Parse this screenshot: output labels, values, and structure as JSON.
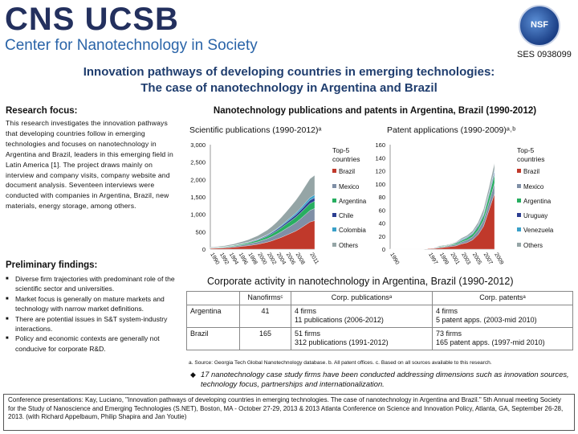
{
  "header": {
    "logo_main": "CNS UCSB",
    "logo_sub": "Center for Nanotechnology in Society",
    "nsf_label": "NSF",
    "ses_number": "SES 0938099"
  },
  "title": {
    "line1": "Innovation pathways of developing countries in emerging technologies:",
    "line2": "The case of nanotechnology in Argentina and Brazil"
  },
  "research_focus": {
    "heading": "Research focus:",
    "text": "This research investigates the innovation pathways that developing countries follow in emerging technologies and focuses on nanotechnology in Argentina and Brazil, leaders in this emerging field in Latin America [1]. The project draws mainly on interview and company visits, company website and document analysis. Seventeen interviews were conducted with companies in Argentina, Brazil, new materials, energy storage, among others."
  },
  "preliminary_findings": {
    "heading": "Preliminary findings:",
    "items": [
      "Diverse firm trajectories with predominant role of the scientific sector and universities.",
      "Market focus is generally on mature markets and technology with narrow market definitions.",
      "There are potential issues in S&T system-industry interactions.",
      "Policy and economic contexts are generally not conducive for corporate R&D."
    ]
  },
  "charts_heading": "Nanotechnology publications and patents in Argentina, Brazil (1990-2012)",
  "chart_data": [
    {
      "type": "area",
      "title": "Scientific publications (1990-2012)ᵃ",
      "ylim": [
        0,
        3000
      ],
      "yticks": [
        "3,000",
        "2,500",
        "2,000",
        "1,500",
        "1,000",
        "500",
        "0"
      ],
      "ytick_values": [
        3000,
        2500,
        2000,
        1500,
        1000,
        500,
        0
      ],
      "xticks": [
        "1990",
        "1992",
        "1994",
        "1996",
        "1998",
        "2000",
        "2002",
        "2004",
        "2006",
        "2008",
        "2011"
      ],
      "x": [
        1990,
        1991,
        1992,
        1993,
        1994,
        1995,
        1996,
        1997,
        1998,
        1999,
        2000,
        2001,
        2002,
        2003,
        2004,
        2005,
        2006,
        2007,
        2008,
        2009,
        2010,
        2011,
        2012
      ],
      "series": [
        {
          "name": "Brazil",
          "color": "#c0392b",
          "values": [
            20,
            25,
            30,
            35,
            45,
            55,
            70,
            85,
            100,
            120,
            140,
            170,
            200,
            240,
            290,
            340,
            400,
            460,
            520,
            600,
            690,
            780,
            820
          ]
        },
        {
          "name": "Mexico",
          "color": "#7f8fa6",
          "values": [
            10,
            12,
            15,
            18,
            22,
            28,
            35,
            42,
            50,
            60,
            70,
            85,
            100,
            120,
            140,
            165,
            190,
            215,
            240,
            270,
            300,
            330,
            350
          ]
        },
        {
          "name": "Argentina",
          "color": "#27ae60",
          "values": [
            8,
            10,
            12,
            14,
            17,
            20,
            25,
            30,
            35,
            42,
            50,
            60,
            70,
            82,
            95,
            110,
            125,
            140,
            155,
            170,
            185,
            200,
            210
          ]
        },
        {
          "name": "Chile",
          "color": "#2c3e91",
          "values": [
            3,
            4,
            5,
            6,
            7,
            8,
            10,
            12,
            14,
            17,
            20,
            24,
            28,
            33,
            38,
            45,
            52,
            60,
            68,
            76,
            85,
            95,
            100
          ]
        },
        {
          "name": "Colombia",
          "color": "#3aa0c8",
          "values": [
            1,
            1,
            2,
            2,
            3,
            3,
            4,
            5,
            6,
            8,
            10,
            12,
            15,
            18,
            22,
            27,
            33,
            40,
            48,
            57,
            66,
            75,
            80
          ]
        },
        {
          "name": "Others",
          "color": "#95a5a6",
          "values": [
            15,
            18,
            20,
            25,
            30,
            35,
            45,
            55,
            65,
            80,
            95,
            115,
            135,
            160,
            190,
            230,
            270,
            320,
            370,
            420,
            480,
            540,
            560
          ]
        }
      ],
      "legend_header": "Top-5 countries",
      "legend": [
        "Brazil",
        "Mexico",
        "Argentina",
        "Chile",
        "Colombia",
        "Others"
      ]
    },
    {
      "type": "area",
      "title": "Patent applications (1990-2009)ᵃ˒ᵇ",
      "ylim": [
        0,
        160
      ],
      "yticks": [
        "160",
        "140",
        "120",
        "100",
        "80",
        "60",
        "40",
        "20",
        "0"
      ],
      "ytick_values": [
        160,
        140,
        120,
        100,
        80,
        60,
        40,
        20,
        0
      ],
      "xticks": [
        "1990",
        "1997",
        "1999",
        "2001",
        "2003",
        "2005",
        "2007",
        "2009"
      ],
      "x": [
        1990,
        1991,
        1992,
        1993,
        1994,
        1995,
        1996,
        1997,
        1998,
        1999,
        2000,
        2001,
        2002,
        2003,
        2004,
        2005,
        2006,
        2007,
        2008,
        2009
      ],
      "series": [
        {
          "name": "Brazil",
          "color": "#c0392b",
          "values": [
            0,
            0,
            0,
            0,
            0,
            0,
            0,
            1,
            1,
            2,
            3,
            4,
            5,
            8,
            10,
            14,
            22,
            35,
            60,
            85
          ]
        },
        {
          "name": "Mexico",
          "color": "#7f8fa6",
          "values": [
            0,
            0,
            0,
            0,
            0,
            0,
            0,
            0,
            1,
            1,
            1,
            2,
            2,
            3,
            4,
            5,
            7,
            9,
            12,
            16
          ]
        },
        {
          "name": "Argentina",
          "color": "#27ae60",
          "values": [
            0,
            0,
            0,
            0,
            0,
            0,
            0,
            0,
            0,
            1,
            1,
            1,
            2,
            2,
            3,
            4,
            5,
            7,
            10,
            14
          ]
        },
        {
          "name": "Uruguay",
          "color": "#2c3e91",
          "values": [
            0,
            0,
            0,
            0,
            0,
            0,
            0,
            0,
            0,
            0,
            0,
            0,
            1,
            1,
            1,
            1,
            2,
            2,
            3,
            4
          ]
        },
        {
          "name": "Venezuela",
          "color": "#3aa0c8",
          "values": [
            0,
            0,
            0,
            0,
            0,
            0,
            0,
            0,
            0,
            0,
            0,
            0,
            0,
            1,
            1,
            1,
            1,
            2,
            2,
            3
          ]
        },
        {
          "name": "Others",
          "color": "#95a5a6",
          "values": [
            0,
            0,
            0,
            0,
            0,
            0,
            0,
            0,
            0,
            1,
            1,
            1,
            1,
            2,
            2,
            3,
            4,
            6,
            8,
            10
          ]
        }
      ],
      "legend_header": "Top-5 countries",
      "legend": [
        "Brazil",
        "Mexico",
        "Argentina",
        "Uruguay",
        "Venezuela",
        "Others"
      ]
    }
  ],
  "corporate": {
    "heading": "Corporate activity in nanotechnology in Argentina, Brazil (1990-2012)",
    "columns": [
      "",
      "Nanofirmsᶜ",
      "Corp. publicationsᵃ",
      "Corp. patentsᵃ"
    ],
    "rows": [
      {
        "country": "Argentina",
        "nanofirms": "41",
        "pubs_1": "4 firms",
        "pubs_2": "11 publications (2006-2012)",
        "pats_1": "4 firms",
        "pats_2": "5 patent apps. (2003-mid 2010)"
      },
      {
        "country": "Brazil",
        "nanofirms": "165",
        "pubs_1": "51 firms",
        "pubs_2": "312 publications (1991-2012)",
        "pats_1": "73 firms",
        "pats_2": "165 patent apps. (1997-mid 2010)"
      }
    ],
    "notes": "a. Source: Georgia Tech Global Nanotechnology database.  b. All patent offices.  c. Based on all sources available to this research.",
    "case_line": "17 nanotechnology case study firms have been conducted addressing dimensions such as innovation sources, technology focus, partnerships and internationalization."
  },
  "footer": {
    "text": "Conference presentations: Kay, Luciano, \"Innovation pathways of developing countries in emerging technologies. The case of nanotechnology in Argentina and Brazil.\" 5th Annual meeting Society for the Study of Nanoscience and Emerging Technologies (S.NET), Boston, MA - October 27-29, 2013 & 2013 Atlanta Conference on Science and Innovation Policy, Atlanta, GA, September 26-28, 2013. (with Richard Appelbaum, Philip Shapira and Jan Youtie)"
  }
}
